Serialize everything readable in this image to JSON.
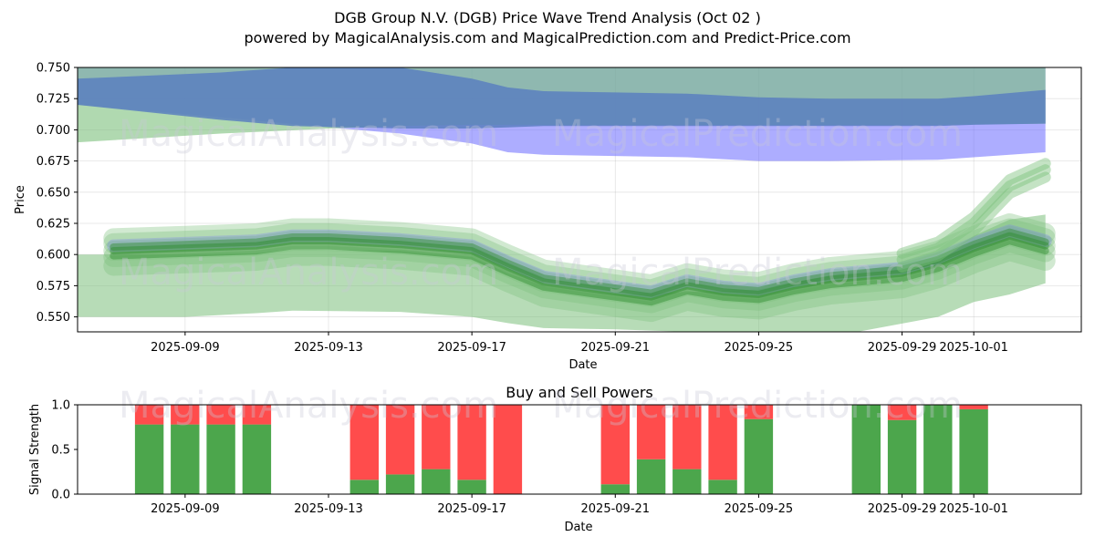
{
  "titles": {
    "main": "DGB Group N.V. (DGB) Price Wave Trend Analysis (Oct 02 )",
    "sub": "powered by MagicalAnalysis.com and MagicalPrediction.com and Predict-Price.com"
  },
  "watermarks": [
    "MagicalAnalysis.com",
    "MagicalPrediction.com"
  ],
  "colors": {
    "blue_band": "#6a6aff",
    "blue_center": "#5b7fc0",
    "green_band": "#7cc07c",
    "green_line": "#2e8b2e",
    "buy": "#4ca64c",
    "sell": "#ff4c4c"
  },
  "chart_data": [
    {
      "type": "area",
      "name": "price-wave",
      "title": "",
      "xlabel": "Date",
      "ylabel": "Price",
      "xlim": [
        "2025-09-06",
        "2025-10-04"
      ],
      "ylim": [
        0.538,
        0.75
      ],
      "yticks": [
        0.55,
        0.575,
        0.6,
        0.625,
        0.65,
        0.675,
        0.7,
        0.725,
        0.75
      ],
      "ytick_labels": [
        "0.550",
        "0.575",
        "0.600",
        "0.625",
        "0.650",
        "0.675",
        "0.700",
        "0.725",
        "0.750"
      ],
      "xticks": [
        "2025-09-09",
        "2025-09-13",
        "2025-09-17",
        "2025-09-21",
        "2025-09-25",
        "2025-09-29",
        "2025-10-01"
      ],
      "series": [
        {
          "name": "wide-blue-band",
          "x": [
            "2025-09-06",
            "2025-09-10",
            "2025-09-13",
            "2025-09-15",
            "2025-09-17",
            "2025-09-18",
            "2025-09-19",
            "2025-09-21",
            "2025-09-23",
            "2025-09-25",
            "2025-09-27",
            "2025-09-30",
            "2025-10-03"
          ],
          "upper": [
            0.75,
            0.75,
            0.75,
            0.75,
            0.75,
            0.75,
            0.75,
            0.75,
            0.75,
            0.75,
            0.75,
            0.75,
            0.75
          ],
          "lower": [
            0.72,
            0.71,
            0.702,
            0.697,
            0.689,
            0.682,
            0.68,
            0.679,
            0.678,
            0.675,
            0.675,
            0.676,
            0.682
          ]
        },
        {
          "name": "wide-green-band",
          "x": [
            "2025-09-06",
            "2025-09-10",
            "2025-09-13",
            "2025-09-15",
            "2025-09-17",
            "2025-09-19",
            "2025-09-21",
            "2025-09-23",
            "2025-09-25",
            "2025-09-27",
            "2025-09-30",
            "2025-10-03"
          ],
          "upper": [
            0.75,
            0.75,
            0.75,
            0.75,
            0.75,
            0.75,
            0.75,
            0.75,
            0.75,
            0.75,
            0.75,
            0.75
          ],
          "lower": [
            0.69,
            0.697,
            0.701,
            0.703,
            0.704,
            0.704,
            0.704,
            0.704,
            0.704,
            0.704,
            0.704,
            0.705
          ]
        },
        {
          "name": "blue-center-band",
          "x": [
            "2025-09-06",
            "2025-09-10",
            "2025-09-12",
            "2025-09-15",
            "2025-09-17",
            "2025-09-18",
            "2025-09-19",
            "2025-09-21",
            "2025-09-23",
            "2025-09-25",
            "2025-09-27",
            "2025-09-30",
            "2025-10-01",
            "2025-10-03"
          ],
          "upper": [
            0.741,
            0.746,
            0.75,
            0.75,
            0.741,
            0.734,
            0.731,
            0.73,
            0.729,
            0.726,
            0.725,
            0.725,
            0.727,
            0.732
          ],
          "lower": [
            0.72,
            0.708,
            0.703,
            0.701,
            0.701,
            0.702,
            0.703,
            0.703,
            0.703,
            0.703,
            0.703,
            0.703,
            0.704,
            0.705
          ]
        },
        {
          "name": "lower-green-range",
          "x": [
            "2025-09-06",
            "2025-09-09",
            "2025-09-11",
            "2025-09-12",
            "2025-09-15",
            "2025-09-17",
            "2025-09-18",
            "2025-09-19",
            "2025-09-21",
            "2025-09-23",
            "2025-09-25",
            "2025-09-27",
            "2025-09-30",
            "2025-10-01",
            "2025-10-02",
            "2025-10-03"
          ],
          "upper": [
            0.6,
            0.6,
            0.601,
            0.604,
            0.603,
            0.598,
            0.585,
            0.575,
            0.568,
            0.57,
            0.572,
            0.583,
            0.598,
            0.615,
            0.628,
            0.632
          ],
          "lower": [
            0.55,
            0.55,
            0.553,
            0.555,
            0.554,
            0.55,
            0.545,
            0.541,
            0.54,
            0.538,
            0.536,
            0.534,
            0.55,
            0.562,
            0.568,
            0.577
          ]
        },
        {
          "name": "main-trend",
          "x": [
            "2025-09-07",
            "2025-09-09",
            "2025-09-11",
            "2025-09-12",
            "2025-09-13",
            "2025-09-15",
            "2025-09-17",
            "2025-09-18",
            "2025-09-19",
            "2025-09-21",
            "2025-09-22",
            "2025-09-23",
            "2025-09-24",
            "2025-09-25",
            "2025-09-26",
            "2025-09-27",
            "2025-09-29",
            "2025-09-30",
            "2025-10-01",
            "2025-10-02",
            "2025-10-03"
          ],
          "values": [
            0.603,
            0.605,
            0.607,
            0.611,
            0.611,
            0.608,
            0.603,
            0.59,
            0.578,
            0.57,
            0.566,
            0.575,
            0.57,
            0.568,
            0.575,
            0.58,
            0.585,
            0.593,
            0.605,
            0.615,
            0.607
          ]
        },
        {
          "name": "upper-forecast-spike",
          "x": [
            "2025-09-29",
            "2025-09-30",
            "2025-10-01",
            "2025-10-02",
            "2025-10-03"
          ],
          "values": [
            0.596,
            0.605,
            0.625,
            0.655,
            0.668
          ]
        }
      ]
    },
    {
      "type": "bar",
      "name": "buy-sell-powers",
      "title": "Buy and Sell Powers",
      "xlabel": "Date",
      "ylabel": "Signal Strength",
      "ylim": [
        0,
        1
      ],
      "yticks": [
        0.0,
        0.5,
        1.0
      ],
      "ytick_labels": [
        "0.0",
        "0.5",
        "1.0"
      ],
      "xlim": [
        "2025-09-06",
        "2025-10-04"
      ],
      "xticks": [
        "2025-09-09",
        "2025-09-13",
        "2025-09-17",
        "2025-09-21",
        "2025-09-25",
        "2025-09-29",
        "2025-10-01"
      ],
      "categories": [
        "2025-09-08",
        "2025-09-09",
        "2025-09-10",
        "2025-09-11",
        "2025-09-14",
        "2025-09-15",
        "2025-09-16",
        "2025-09-17",
        "2025-09-18",
        "2025-09-21",
        "2025-09-22",
        "2025-09-23",
        "2025-09-24",
        "2025-09-25",
        "2025-09-28",
        "2025-09-29",
        "2025-09-30",
        "2025-10-01"
      ],
      "series": [
        {
          "name": "Buy",
          "values": [
            0.78,
            0.78,
            0.78,
            0.78,
            0.16,
            0.22,
            0.28,
            0.16,
            0.0,
            0.11,
            0.39,
            0.28,
            0.16,
            0.84,
            1.0,
            0.83,
            1.0,
            0.95
          ]
        },
        {
          "name": "Sell",
          "values": [
            0.22,
            0.22,
            0.22,
            0.22,
            0.84,
            0.78,
            0.72,
            0.84,
            1.0,
            0.89,
            0.61,
            0.72,
            0.84,
            0.16,
            0.0,
            0.17,
            0.0,
            0.05
          ]
        }
      ]
    }
  ]
}
